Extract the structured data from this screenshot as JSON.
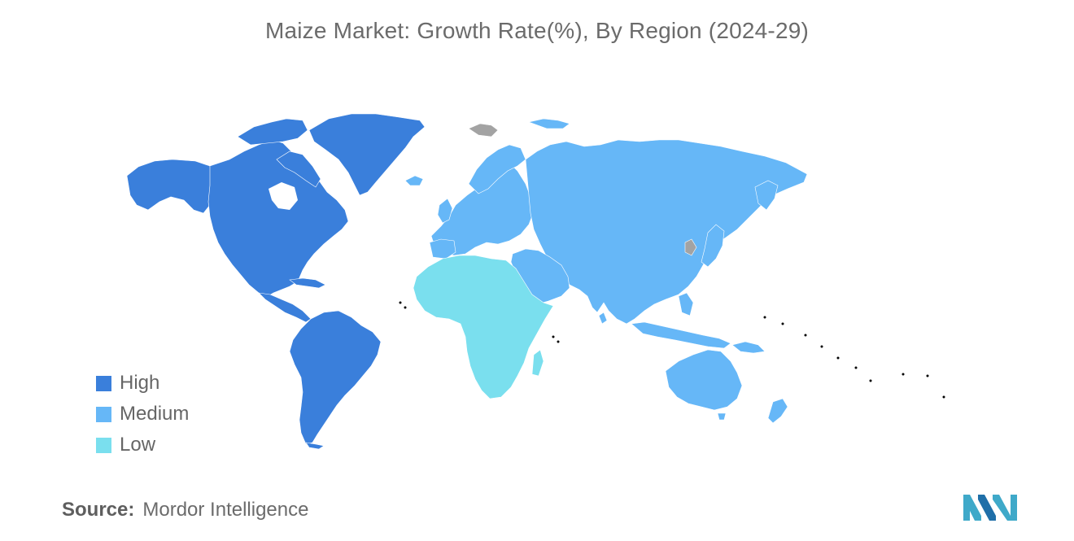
{
  "title": "Maize Market: Growth Rate(%), By Region (2024-29)",
  "legend": [
    {
      "key": "high",
      "label": "High",
      "color": "#3a7fdb"
    },
    {
      "key": "medium",
      "label": "Medium",
      "color": "#66b7f7"
    },
    {
      "key": "low",
      "label": "Low",
      "color": "#7adfee"
    }
  ],
  "no_data_color": "#a3a3a3",
  "regions": {
    "north_america": "high",
    "south_america": "high",
    "europe": "medium",
    "asia_pacific": "medium",
    "middle_east": "medium",
    "africa": "low"
  },
  "source": {
    "label": "Source:",
    "value": "Mordor Intelligence"
  },
  "logo": {
    "icon": "mordor-intelligence-logo-icon",
    "colors": [
      "#3fa9c9",
      "#1f6fa8"
    ]
  }
}
